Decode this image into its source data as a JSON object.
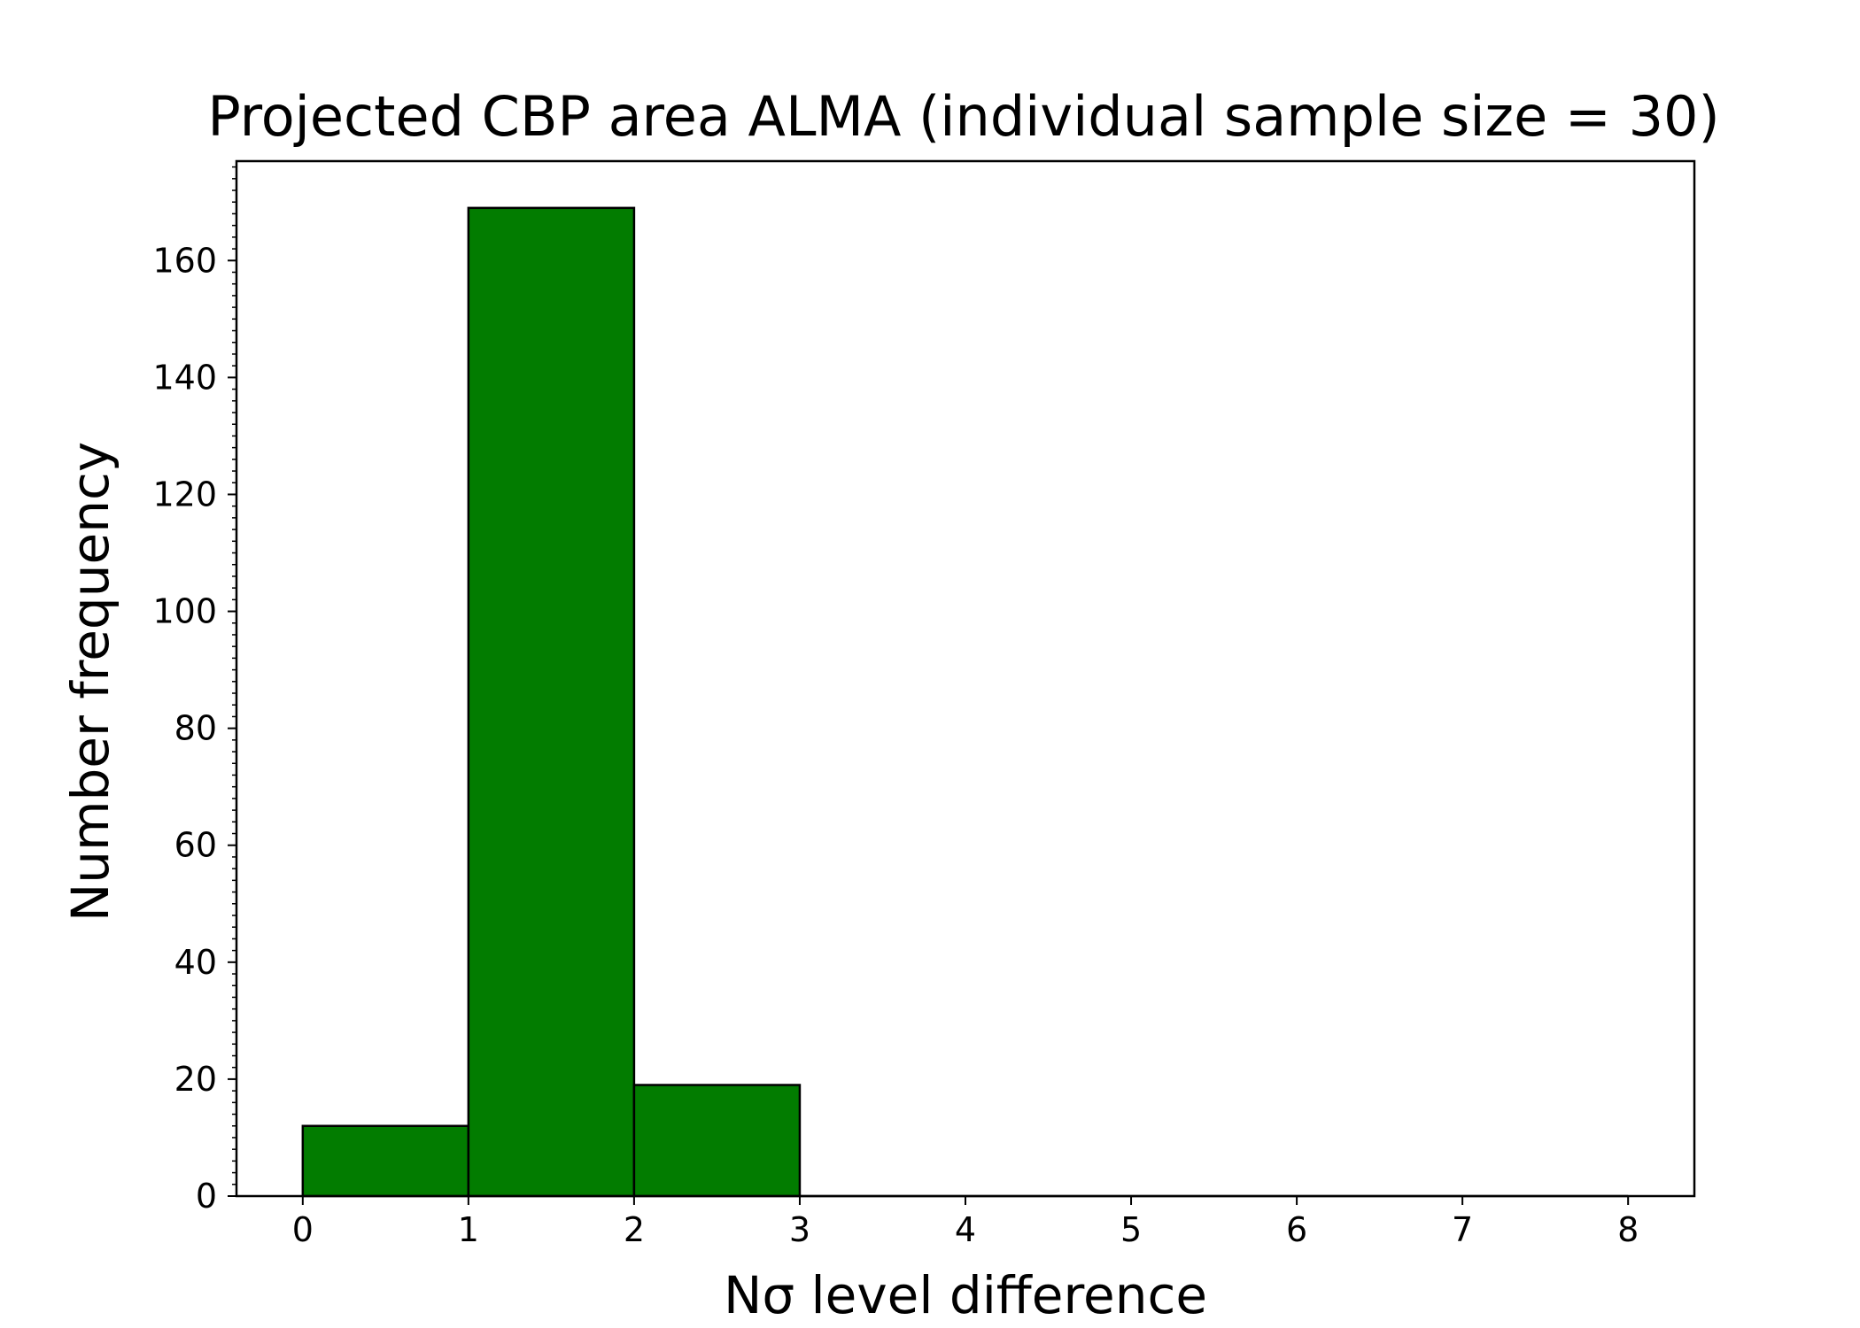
{
  "chart_data": {
    "type": "bar",
    "title": "Projected CBP area ALMA (individual sample size = 30)",
    "xlabel": "Nσ level difference",
    "ylabel": "Number frequency",
    "bin_edges": [
      0,
      1,
      2,
      3,
      4,
      5,
      6,
      7,
      8
    ],
    "values": [
      12,
      169,
      19,
      0,
      0,
      0,
      0,
      0
    ],
    "xlim": [
      -0.4,
      8.4
    ],
    "ylim": [
      0,
      177
    ],
    "xticks": [
      0,
      1,
      2,
      3,
      4,
      5,
      6,
      7,
      8
    ],
    "yticks": [
      0,
      20,
      40,
      60,
      80,
      100,
      120,
      140,
      160
    ],
    "y_minor_step": 2,
    "bar_color": "#027c00",
    "edge_color": "#000000",
    "grid": false,
    "legend": null
  }
}
